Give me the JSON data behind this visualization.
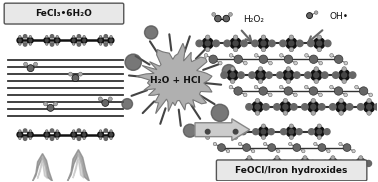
{
  "bg_color": "#ffffff",
  "title_box1": "FeCl₃•6H₂O",
  "title_box2": "FeOCl/Iron hydroxides",
  "reaction_label": "H₂O + HCl",
  "h2o2_label": "H₂O₂",
  "oh_label": "OH•",
  "dark": "#111111",
  "mid_dark": "#333333",
  "mid": "#666666",
  "light": "#aaaaaa",
  "vlight": "#cccccc",
  "box_fill": "#e8e8e8",
  "box_edge": "#555555"
}
